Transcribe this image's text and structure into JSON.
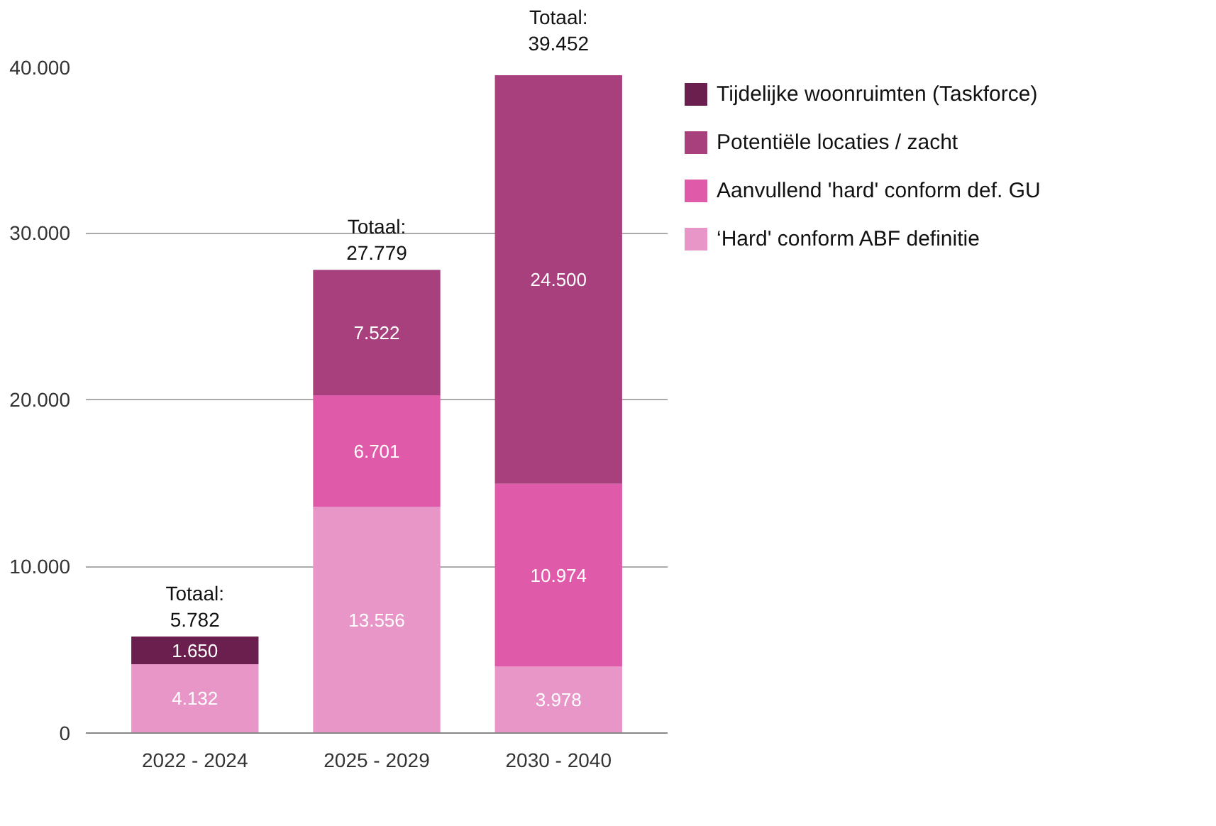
{
  "chart_data": {
    "type": "bar",
    "stacked": true,
    "categories": [
      "2022 - 2024",
      "2025 - 2029",
      "2030 - 2040"
    ],
    "series": [
      {
        "name": "‘Hard' conform ABF definitie",
        "color": "#e896c8",
        "values": [
          4132,
          13556,
          3978
        ],
        "value_labels": [
          "4.132",
          "13.556",
          "3.978"
        ]
      },
      {
        "name": "Aanvullend 'hard' conform def. GU",
        "color": "#e05aaa",
        "values": [
          null,
          6701,
          10974
        ],
        "value_labels": [
          null,
          "6.701",
          "10.974"
        ]
      },
      {
        "name": "Potentiële locaties / zacht",
        "color": "#a8407e",
        "values": [
          null,
          7522,
          24500
        ],
        "value_labels": [
          null,
          "7.522",
          "24.500"
        ]
      },
      {
        "name": "Tijdelijke woonruimten (Taskforce)",
        "color": "#6b1f4f",
        "values": [
          1650,
          null,
          null
        ],
        "value_labels": [
          "1.650",
          null,
          null
        ]
      }
    ],
    "totals": [
      "Totaal:\n5.782",
      "Totaal:\n27.779",
      "Totaal:\n39.452"
    ],
    "ylim": [
      0,
      40000
    ],
    "yticks": [
      0,
      {
        "value": 10000,
        "label": "10.000"
      },
      {
        "value": 20000,
        "label": "20.000"
      },
      {
        "value": 30000,
        "label": "30.000"
      },
      {
        "value": 40000,
        "label": "40.000"
      }
    ],
    "grid": "y",
    "legend": "right"
  }
}
